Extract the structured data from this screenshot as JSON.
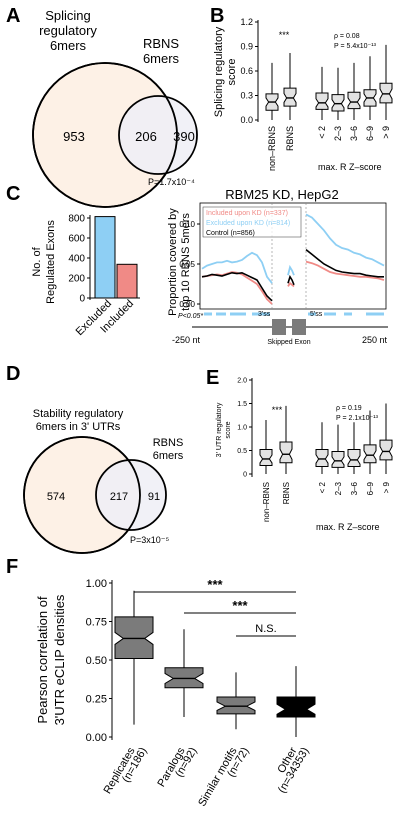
{
  "colors": {
    "peach": "#fdf1e6",
    "lavender": "#efeff6",
    "box_fill": "#e3e3e3",
    "excluded": "#8ecff4",
    "included": "#f08a86",
    "control": "#000000",
    "dark_gray": "#7b7b7b"
  },
  "panelA": {
    "label": "A",
    "left_title": [
      "Splicing",
      "regulatory",
      "6mers"
    ],
    "right_title": [
      "RBNS",
      "6mers"
    ],
    "left_only": "953",
    "overlap": "206",
    "right_only": "390",
    "pvalue": "P=1.7x10⁻⁴"
  },
  "panelB": {
    "label": "B",
    "ylabel": [
      "Splicing regulatory",
      "score"
    ],
    "yticks": [
      "0.0",
      "0.3",
      "0.6",
      "0.9",
      "1.2"
    ],
    "sig": "***",
    "stats": [
      "ρ = 0.08",
      "P = 5.4x10⁻¹³"
    ],
    "xlabels_left": [
      "non–RBNS",
      "RBNS"
    ],
    "xlabels_right": [
      "< 2",
      "2–3",
      "3–6",
      "6–9",
      "> 9"
    ],
    "xtitle": "max. R Z–score"
  },
  "panelC": {
    "label": "C",
    "title": "RBM25 KD, HepG2",
    "bar_ylabel": [
      "No. of",
      "Regulated Exons"
    ],
    "bar_yticks": [
      "0",
      "200",
      "400",
      "600",
      "800"
    ],
    "bar_categories": [
      "Excluded",
      "Included"
    ],
    "line_ylabel": [
      "Proportion covered by",
      "top 10 RBNS 5mers"
    ],
    "line_yticks": [
      "0.00",
      "0.05",
      "0.10"
    ],
    "legend": [
      "Included upon KD (n=337)",
      "Excluded upon KD (n=814)",
      "Control (n=856)"
    ],
    "sig_label": "P<0.05*",
    "x_start": "-250 nt",
    "x_end": "250 nt",
    "ss3": "3'ss",
    "ss5": "5'ss",
    "exon_label": "Skipped Exon"
  },
  "panelD": {
    "label": "D",
    "left_title": [
      "Stability regulatory",
      "6mers in 3' UTRs"
    ],
    "right_title": [
      "RBNS",
      "6mers"
    ],
    "left_only": "574",
    "overlap": "217",
    "right_only": "91",
    "pvalue": "P=3x10⁻⁵"
  },
  "panelE": {
    "label": "E",
    "ylabel": [
      "3' UTR regulatory",
      "score"
    ],
    "yticks": [
      "0",
      "0.5",
      "1.0",
      "1.5",
      "2.0"
    ],
    "sig": "***",
    "stats": [
      "ρ = 0.19",
      "P = 2.1x10⁻¹³"
    ],
    "xlabels_left": [
      "non–RBNS",
      "RBNS"
    ],
    "xlabels_right": [
      "< 2",
      "2–3",
      "3–6",
      "6–9",
      "> 9"
    ],
    "xtitle": "max. R Z–score"
  },
  "panelF": {
    "label": "F",
    "ylabel": [
      "Pearson correlation of",
      "3'UTR eCLIP densities"
    ],
    "yticks": [
      "0.00",
      "0.25",
      "0.50",
      "0.75",
      "1.00"
    ],
    "sig": [
      "***",
      "***",
      "N.S."
    ],
    "xlabels": [
      "Replicates",
      "(n=186)",
      "Paralogs",
      "(n=92)",
      "Similar motifs",
      "(n=72)",
      "Other",
      "(n=34353)"
    ]
  },
  "chart_data": [
    {
      "panel": "C-bar",
      "type": "bar",
      "categories": [
        "Excluded",
        "Included"
      ],
      "values": [
        814,
        337
      ],
      "ylim": [
        0,
        850
      ]
    },
    {
      "panel": "C-line",
      "type": "line",
      "ylim": [
        0,
        0.12
      ],
      "series": [
        {
          "name": "Included upon KD (n=337)",
          "left": [
            0.034,
            0.035,
            0.036,
            0.037,
            0.036,
            0.038,
            0.04,
            0.039,
            0.037,
            0.033,
            0.029,
            0.025,
            0.016,
            0.006,
            0.0
          ],
          "mid": [
            0.022,
            0.026,
            0.024,
            0.022
          ],
          "right": [
            0.053,
            0.051,
            0.048,
            0.044,
            0.04,
            0.038,
            0.037,
            0.036,
            0.035,
            0.034,
            0.034,
            0.033,
            0.032,
            0.03
          ]
        },
        {
          "name": "Excluded upon KD (n=814)",
          "left": [
            0.044,
            0.048,
            0.05,
            0.052,
            0.052,
            0.054,
            0.052,
            0.053,
            0.055,
            0.06,
            0.064,
            0.061,
            0.052,
            0.034,
            0.026
          ],
          "mid": [
            0.036,
            0.046,
            0.042,
            0.036
          ],
          "right": [
            0.112,
            0.108,
            0.1,
            0.092,
            0.082,
            0.074,
            0.07,
            0.068,
            0.064,
            0.062,
            0.058,
            0.056,
            0.052,
            0.048
          ]
        },
        {
          "name": "Control (n=856)",
          "left": [
            0.034,
            0.035,
            0.037,
            0.036,
            0.035,
            0.037,
            0.039,
            0.038,
            0.039,
            0.036,
            0.033,
            0.03,
            0.02,
            0.01,
            0.004
          ],
          "mid": [
            0.026,
            0.034,
            0.03,
            0.024
          ],
          "right": [
            0.068,
            0.062,
            0.056,
            0.05,
            0.046,
            0.042,
            0.04,
            0.039,
            0.038,
            0.038,
            0.036,
            0.035,
            0.034,
            0.034
          ]
        }
      ]
    },
    {
      "panel": "B",
      "type": "box",
      "ylim": [
        0,
        1.2
      ],
      "boxes": [
        {
          "q1": 0.12,
          "median": 0.22,
          "q3": 0.32,
          "whisker_low": 0.0,
          "whisker_high": 0.7
        },
        {
          "q1": 0.17,
          "median": 0.27,
          "q3": 0.39,
          "whisker_low": 0.0,
          "whisker_high": 0.82
        },
        {
          "q1": 0.13,
          "median": 0.21,
          "q3": 0.33,
          "whisker_low": 0.0,
          "whisker_high": 0.65
        },
        {
          "q1": 0.11,
          "median": 0.2,
          "q3": 0.31,
          "whisker_low": 0.0,
          "whisker_high": 0.64
        },
        {
          "q1": 0.14,
          "median": 0.22,
          "q3": 0.34,
          "whisker_low": 0.0,
          "whisker_high": 0.7
        },
        {
          "q1": 0.17,
          "median": 0.27,
          "q3": 0.37,
          "whisker_low": 0.0,
          "whisker_high": 0.78
        },
        {
          "q1": 0.21,
          "median": 0.32,
          "q3": 0.45,
          "whisker_low": 0.0,
          "whisker_high": 0.92
        }
      ]
    },
    {
      "panel": "E",
      "type": "box",
      "ylim": [
        0,
        2.0
      ],
      "boxes": [
        {
          "q1": 0.18,
          "median": 0.32,
          "q3": 0.52,
          "whisker_low": 0.0,
          "whisker_high": 1.15
        },
        {
          "q1": 0.24,
          "median": 0.42,
          "q3": 0.68,
          "whisker_low": 0.0,
          "whisker_high": 1.45
        },
        {
          "q1": 0.16,
          "median": 0.32,
          "q3": 0.52,
          "whisker_low": 0.0,
          "whisker_high": 1.1
        },
        {
          "q1": 0.14,
          "median": 0.28,
          "q3": 0.48,
          "whisker_low": 0.0,
          "whisker_high": 1.05
        },
        {
          "q1": 0.16,
          "median": 0.3,
          "q3": 0.52,
          "whisker_low": 0.0,
          "whisker_high": 1.1
        },
        {
          "q1": 0.24,
          "median": 0.4,
          "q3": 0.62,
          "whisker_low": 0.0,
          "whisker_high": 1.35
        },
        {
          "q1": 0.3,
          "median": 0.48,
          "q3": 0.72,
          "whisker_low": 0.0,
          "whisker_high": 1.5
        }
      ]
    },
    {
      "panel": "F",
      "type": "box",
      "ylim": [
        0,
        1.0
      ],
      "categories": [
        "Replicates (n=186)",
        "Paralogs (n=92)",
        "Similar motifs (n=72)",
        "Other (n=34353)"
      ],
      "boxes": [
        {
          "q1": 0.51,
          "median": 0.64,
          "q3": 0.78,
          "whisker_low": 0.08,
          "whisker_high": 0.95,
          "fill": "#7b7b7b"
        },
        {
          "q1": 0.32,
          "median": 0.38,
          "q3": 0.45,
          "whisker_low": 0.13,
          "whisker_high": 0.7,
          "fill": "#7b7b7b"
        },
        {
          "q1": 0.15,
          "median": 0.2,
          "q3": 0.26,
          "whisker_low": 0.05,
          "whisker_high": 0.42,
          "fill": "#7b7b7b"
        },
        {
          "q1": 0.13,
          "median": 0.18,
          "q3": 0.26,
          "whisker_low": 0.0,
          "whisker_high": 0.46,
          "fill": "#000000"
        }
      ]
    }
  ]
}
